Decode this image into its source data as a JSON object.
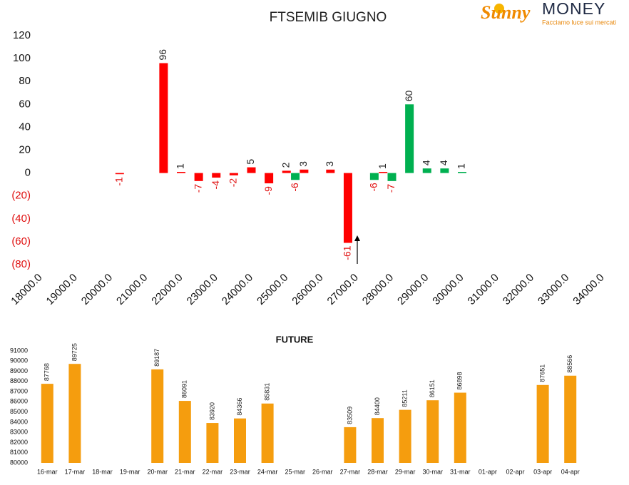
{
  "logo": {
    "brand": "Sunny",
    "name": "MONEY",
    "tagline": "Facciamo luce sui mercati"
  },
  "chart_data": [
    {
      "type": "bar",
      "title": "FTSEMIB GIUGNO",
      "xlim": [
        18000,
        34000
      ],
      "xticks": [
        {
          "value": 18000,
          "label": "18000.0"
        },
        {
          "value": 19000,
          "label": "19000.0"
        },
        {
          "value": 20000,
          "label": "20000.0"
        },
        {
          "value": 21000,
          "label": "21000.0"
        },
        {
          "value": 22000,
          "label": "22000.0"
        },
        {
          "value": 23000,
          "label": "23000.0"
        },
        {
          "value": 24000,
          "label": "24000.0"
        },
        {
          "value": 25000,
          "label": "25000.0"
        },
        {
          "value": 26000,
          "label": "26000.0"
        },
        {
          "value": 27000,
          "label": "27000.0"
        },
        {
          "value": 28000,
          "label": "28000.0"
        },
        {
          "value": 29000,
          "label": "29000.0"
        },
        {
          "value": 30000,
          "label": "30000.0"
        },
        {
          "value": 31000,
          "label": "31000.0"
        },
        {
          "value": 32000,
          "label": "32000.0"
        },
        {
          "value": 33000,
          "label": "33000.0"
        },
        {
          "value": 34000,
          "label": "34000.0"
        }
      ],
      "ylim": [
        -80,
        120
      ],
      "yticks": [
        {
          "value": -80,
          "label": "(80)"
        },
        {
          "value": -60,
          "label": "(60)"
        },
        {
          "value": -40,
          "label": "(40)"
        },
        {
          "value": -20,
          "label": "(20)"
        },
        0,
        20,
        40,
        60,
        80,
        100,
        120
      ],
      "negative_color": "#e01010",
      "series": [
        {
          "color": "#ff0000",
          "x": [
            20250,
            21500,
            22000,
            22500,
            23000,
            23500,
            24000,
            24500,
            25000,
            25500,
            26250,
            26750,
            27750
          ],
          "values": [
            -1,
            96,
            1,
            -7,
            -4,
            -2,
            5,
            -9,
            2,
            3,
            3,
            -61,
            1
          ]
        },
        {
          "color": "#00b050",
          "x": [
            25250,
            27500,
            28000,
            28500,
            29000,
            29500,
            30000
          ],
          "values": [
            -6,
            -6,
            -7,
            60,
            4,
            4,
            1
          ]
        }
      ]
    },
    {
      "type": "bar",
      "title": "FUTURE",
      "color": "#f59d0e",
      "categories": [
        "16-mar",
        "17-mar",
        "18-mar",
        "19-mar",
        "20-mar",
        "21-mar",
        "22-mar",
        "23-mar",
        "24-mar",
        "25-mar",
        "26-mar",
        "27-mar",
        "28-mar",
        "29-mar",
        "30-mar",
        "31-mar",
        "01-apr",
        "02-apr",
        "03-apr",
        "04-apr"
      ],
      "values": [
        87768,
        89725,
        null,
        null,
        89187,
        86091,
        83920,
        84366,
        85831,
        null,
        null,
        83509,
        84400,
        85211,
        86151,
        86898,
        null,
        null,
        87651,
        88566
      ],
      "ylim": [
        80000,
        91000
      ],
      "yticks": [
        80000,
        81000,
        82000,
        83000,
        84000,
        85000,
        86000,
        87000,
        88000,
        89000,
        90000,
        91000
      ]
    }
  ]
}
